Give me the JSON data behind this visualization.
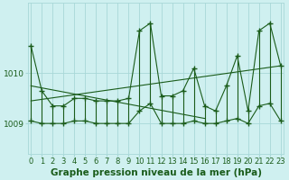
{
  "title": "Graphe pression niveau de la mer (hPa)",
  "background_color": "#cff0f0",
  "line_color": "#1a5c1a",
  "grid_color": "#a8d8d8",
  "x_ticks": [
    0,
    1,
    2,
    3,
    4,
    5,
    6,
    7,
    8,
    9,
    10,
    11,
    12,
    13,
    14,
    15,
    16,
    17,
    18,
    19,
    20,
    21,
    22,
    23
  ],
  "y_ticks": [
    1009,
    1010
  ],
  "ylim": [
    1008.4,
    1011.4
  ],
  "xlim": [
    -0.3,
    23.3
  ],
  "series_high": [
    1010.55,
    1009.65,
    1009.35,
    1009.35,
    1009.5,
    1009.5,
    1009.45,
    1009.45,
    1009.45,
    1009.5,
    1010.85,
    1011.0,
    1009.55,
    1009.55,
    1009.65,
    1010.1,
    1009.35,
    1009.25,
    1009.75,
    1010.35,
    1009.25,
    1010.85,
    1011.0,
    1010.15
  ],
  "series_low": [
    1009.05,
    1009.0,
    1009.0,
    1009.0,
    1009.05,
    1009.05,
    1009.0,
    1009.0,
    1009.0,
    1009.0,
    1009.25,
    1009.4,
    1009.0,
    1009.0,
    1009.0,
    1009.05,
    1009.0,
    1009.0,
    1009.05,
    1009.1,
    1009.0,
    1009.35,
    1009.4,
    1009.05
  ],
  "trend1_x": [
    0,
    23
  ],
  "trend1_y": [
    1009.45,
    1010.15
  ],
  "trend2_x": [
    0,
    16
  ],
  "trend2_y": [
    1009.75,
    1009.1
  ],
  "marker": "+",
  "marker_size": 4,
  "line_width": 0.8,
  "title_fontsize": 7.5,
  "tick_fontsize": 6.0
}
